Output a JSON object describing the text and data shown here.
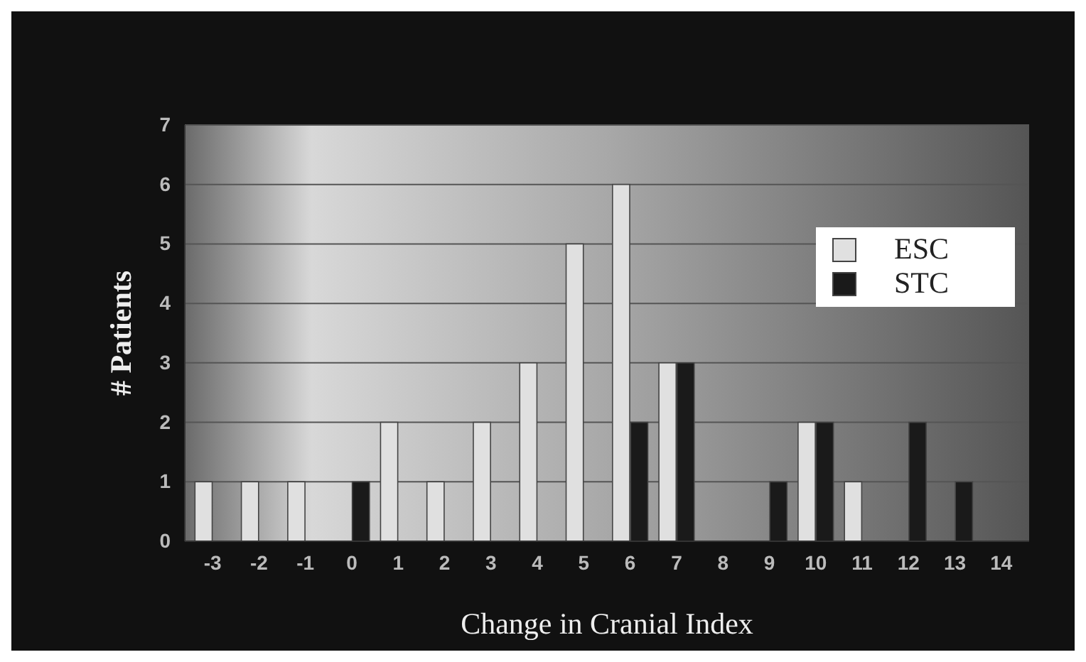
{
  "chart_data": {
    "type": "bar",
    "xlabel": "Change in Cranial Index",
    "ylabel": "# Patients",
    "categories": [
      "-3",
      "-2",
      "-1",
      "0",
      "1",
      "2",
      "3",
      "4",
      "5",
      "6",
      "7",
      "8",
      "9",
      "10",
      "11",
      "12",
      "13",
      "14"
    ],
    "series": [
      {
        "name": "ESC",
        "color": "#e0e0e0",
        "values": [
          1,
          1,
          1,
          null,
          2,
          1,
          2,
          3,
          5,
          6,
          3,
          null,
          null,
          2,
          1,
          null,
          null,
          null
        ]
      },
      {
        "name": "STC",
        "color": "#1a1a1a",
        "values": [
          null,
          null,
          null,
          1,
          null,
          null,
          null,
          null,
          null,
          2,
          3,
          null,
          1,
          2,
          null,
          2,
          1,
          null
        ]
      }
    ],
    "ylim": [
      0,
      7
    ],
    "yticks": [
      0,
      1,
      2,
      3,
      4,
      5,
      6,
      7
    ],
    "grid": "y",
    "legend": "top right"
  }
}
